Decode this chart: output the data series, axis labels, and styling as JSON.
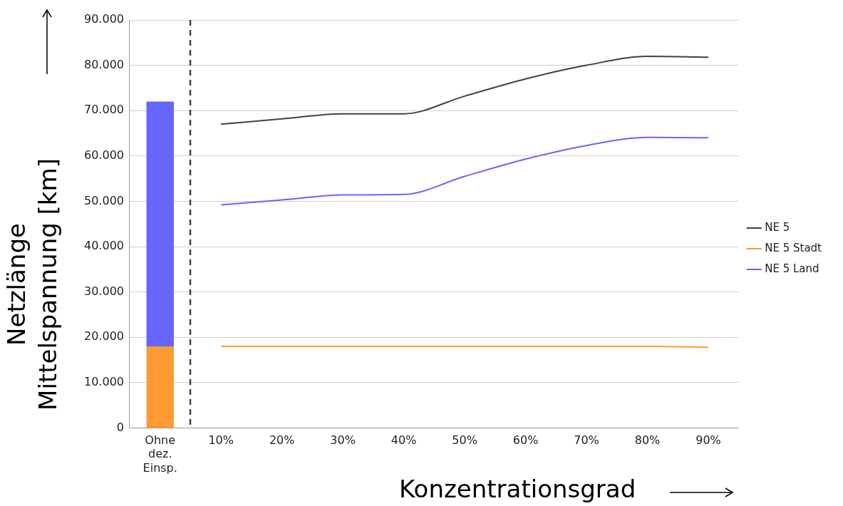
{
  "chart_data": {
    "type": "line",
    "xlabel": "Konzentrationsgrad",
    "ylabel": "Netzlänge\nMittelspannung [km]",
    "categories": [
      "Ohne dez. Einsp.",
      "10%",
      "20%",
      "30%",
      "40%",
      "50%",
      "60%",
      "70%",
      "80%",
      "90%"
    ],
    "stacked": true,
    "series": [
      {
        "type": "bar",
        "color": "#ff9933",
        "values": [
          18000,
          null,
          null,
          null,
          null,
          null,
          null,
          null,
          null,
          null
        ]
      },
      {
        "type": "bar",
        "color": "#6666ff",
        "values": [
          54000,
          null,
          null,
          null,
          null,
          null,
          null,
          null,
          null,
          null
        ]
      },
      {
        "name": "NE 5",
        "color": "#404040",
        "values": [
          null,
          67000,
          68200,
          69300,
          69300,
          73200,
          77000,
          80000,
          82000,
          81800
        ]
      },
      {
        "name": "NE 5 Stadt",
        "color": "#ff9933",
        "values": [
          null,
          18000,
          18000,
          18000,
          18000,
          18000,
          18000,
          18000,
          18000,
          17800
        ]
      },
      {
        "name": "NE 5 Land",
        "color": "#6666ff",
        "values": [
          null,
          49200,
          50300,
          51400,
          51500,
          55500,
          59300,
          62300,
          64100,
          64000
        ]
      }
    ],
    "ylim": [
      0,
      90000
    ],
    "yticks": [
      0,
      {
        "value": 10000,
        "label": "10.000"
      },
      {
        "value": 20000,
        "label": "20.000"
      },
      {
        "value": 30000,
        "label": "30.000"
      },
      {
        "value": 40000,
        "label": "40.000"
      },
      {
        "value": 50000,
        "label": "50.000"
      },
      {
        "value": 60000,
        "label": "60.000"
      },
      {
        "value": 70000,
        "label": "70.000"
      },
      {
        "value": 80000,
        "label": "80.000"
      },
      {
        "value": 90000,
        "label": "90.000"
      }
    ],
    "grid": "y",
    "legend": "right",
    "marker": "none",
    "line_style": "solid"
  }
}
